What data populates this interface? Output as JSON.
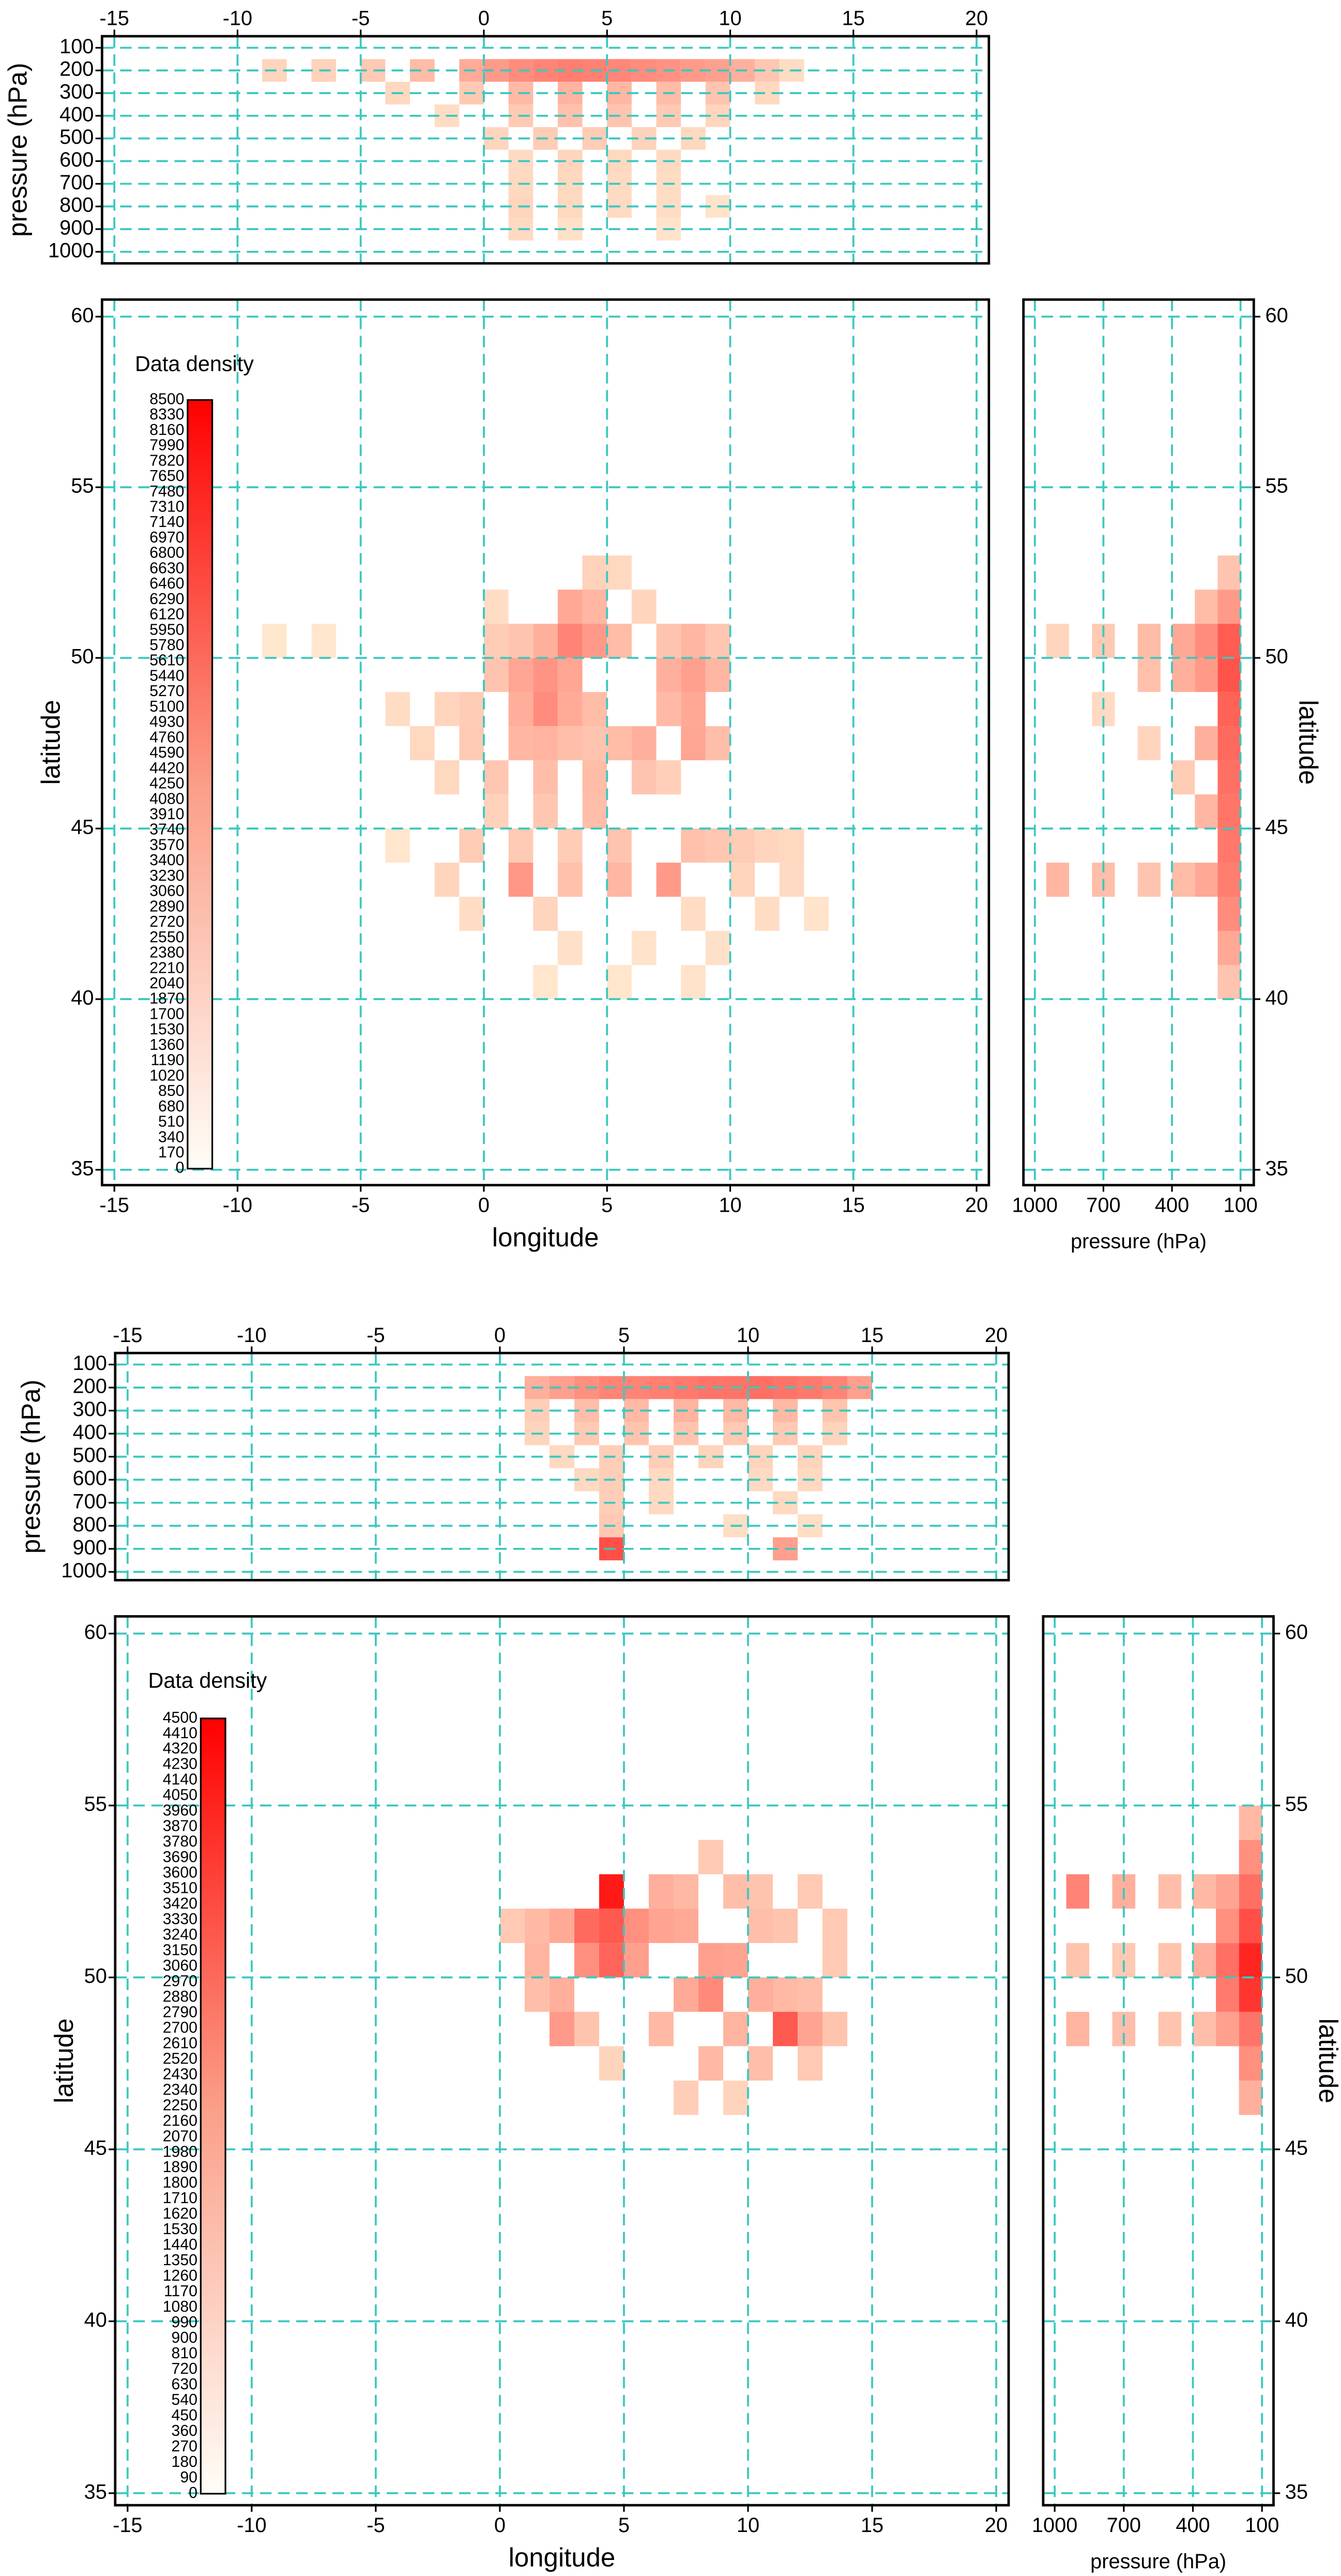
{
  "chart_data": [
    {
      "type": "heatmap",
      "y_label": "pressure (hPa)",
      "xlim": [
        -15.5,
        20.5
      ],
      "xticks": [
        -15,
        -10,
        -5,
        0,
        5,
        10,
        15,
        20
      ],
      "ylim": [
        1051,
        49
      ],
      "yticks": [
        100,
        200,
        300,
        400,
        500,
        600,
        700,
        800,
        900,
        1000
      ],
      "grid": true,
      "cells": {
        "x": [
          -8.5,
          -6.5,
          -4.5,
          -2.5,
          -0.5,
          0.5,
          1.5,
          2.5,
          3.5,
          4.5,
          5.5,
          6.5,
          7.5,
          8.5,
          9.5,
          10.5,
          11.5,
          12.5,
          -3.5,
          -0.5,
          1.5,
          3.5,
          5.5,
          7.5,
          9.5,
          11.5,
          -1.5,
          1.5,
          3.5,
          5.5,
          7.5,
          9.5,
          0.5,
          2.5,
          4.5,
          6.5,
          8.5,
          1.5,
          3.5,
          5.5,
          7.5,
          1.5,
          3.5,
          5.5,
          7.5,
          1.5,
          3.5,
          5.5,
          7.5,
          9.5,
          1.5,
          3.5,
          7.5
        ],
        "y": [
          200,
          200,
          200,
          200,
          200,
          200,
          200,
          200,
          200,
          200,
          200,
          200,
          200,
          200,
          200,
          200,
          200,
          200,
          300,
          300,
          300,
          300,
          300,
          300,
          300,
          300,
          400,
          400,
          400,
          400,
          400,
          400,
          500,
          500,
          500,
          500,
          500,
          600,
          600,
          600,
          600,
          700,
          700,
          700,
          700,
          800,
          800,
          800,
          800,
          800,
          900,
          900,
          900
        ],
        "values": [
          900,
          1000,
          1300,
          1800,
          2400,
          3000,
          3500,
          3800,
          4000,
          3900,
          3700,
          3500,
          3300,
          3000,
          2800,
          2200,
          1400,
          600,
          800,
          1300,
          1900,
          2100,
          2000,
          1800,
          1500,
          800,
          600,
          1300,
          1600,
          1500,
          1300,
          900,
          900,
          1200,
          1200,
          1000,
          800,
          700,
          900,
          800,
          700,
          800,
          800,
          700,
          600,
          900,
          800,
          700,
          600,
          400,
          700,
          500,
          400
        ]
      }
    },
    {
      "type": "heatmap",
      "x_label": "longitude",
      "y_label": "latitude",
      "xlim": [
        -15.5,
        20.5
      ],
      "xticks": [
        -15,
        -10,
        -5,
        0,
        5,
        10,
        15,
        20
      ],
      "ylim": [
        34.55,
        60.5
      ],
      "yticks": [
        35,
        40,
        45,
        50,
        55,
        60
      ],
      "grid": true,
      "colorbar": {
        "title": "Data density",
        "ticks": [
          0,
          170,
          340,
          510,
          680,
          850,
          1020,
          1190,
          1360,
          1530,
          1700,
          1870,
          2040,
          2210,
          2380,
          2550,
          2720,
          2890,
          3060,
          3230,
          3400,
          3570,
          3740,
          3910,
          4080,
          4250,
          4420,
          4590,
          4760,
          4930,
          5100,
          5270,
          5440,
          5610,
          5780,
          5950,
          6120,
          6290,
          6460,
          6630,
          6800,
          6970,
          7140,
          7310,
          7480,
          7650,
          7820,
          7990,
          8160,
          8330,
          8500
        ]
      },
      "cells": {
        "x": [
          3.5,
          4.5,
          3.5,
          4.5,
          2.5,
          5.5,
          0.5,
          1.5,
          5.5,
          4.5,
          6.5,
          0.5,
          1.5,
          2.5,
          3.5,
          2.5,
          1.5,
          3.5,
          4.5,
          0.5,
          -0.5,
          -1.5,
          -3.5,
          -2.5,
          -0.5,
          1.5,
          2.5,
          3.5,
          4.5,
          5.5,
          6.5,
          7.5,
          8.5,
          9.5,
          8.5,
          7.5,
          8.5,
          9.5,
          7.5,
          8.5,
          9.5,
          7.5,
          6.5,
          -1.5,
          0.5,
          2.5,
          4.5,
          0.5,
          2.5,
          4.5,
          -0.5,
          1.5,
          3.5,
          5.5,
          1.5,
          3.5,
          5.5,
          7.5,
          -1.5,
          2.5,
          -0.5,
          3.5,
          -3.5,
          -6.5,
          -8.5,
          8.5,
          9.5,
          10.5,
          11.5,
          12.5,
          10.5,
          8.5,
          9.5,
          11.5,
          6.5,
          5.5,
          8.5,
          12.5,
          13.5,
          2.5
        ],
        "y": [
          51.5,
          51.5,
          50.5,
          50.5,
          50.5,
          50.5,
          50.5,
          50.5,
          52.5,
          52.5,
          51.5,
          51.5,
          49.5,
          49.5,
          49.5,
          48.5,
          48.5,
          48.5,
          48.5,
          49.5,
          48.5,
          48.5,
          48.5,
          47.5,
          47.5,
          47.5,
          47.5,
          47.5,
          47.5,
          47.5,
          47.5,
          49.5,
          49.5,
          49.5,
          48.5,
          48.5,
          50.5,
          50.5,
          50.5,
          47.5,
          47.5,
          46.5,
          46.5,
          46.5,
          46.5,
          46.5,
          46.5,
          45.5,
          45.5,
          45.5,
          44.5,
          44.5,
          44.5,
          44.5,
          43.5,
          43.5,
          43.5,
          43.5,
          43.5,
          42.5,
          42.5,
          41.5,
          44.5,
          50.5,
          50.5,
          44.5,
          44.5,
          44.5,
          44.5,
          43.5,
          43.5,
          42.5,
          41.5,
          42.5,
          41.5,
          40.5,
          40.5,
          44.5,
          42.5,
          40.5
        ],
        "values": [
          2500,
          2000,
          3800,
          3000,
          2200,
          1800,
          1200,
          1500,
          800,
          1000,
          900,
          600,
          2600,
          3200,
          2600,
          3500,
          2300,
          2400,
          1800,
          1500,
          1200,
          900,
          600,
          800,
          1300,
          2000,
          2100,
          1700,
          1500,
          1800,
          2200,
          2200,
          2800,
          2000,
          2500,
          1900,
          2000,
          1400,
          1500,
          2600,
          1700,
          1100,
          1500,
          800,
          1400,
          1700,
          1800,
          1000,
          1400,
          1700,
          1200,
          1300,
          1200,
          1500,
          3100,
          1600,
          2000,
          3000,
          900,
          900,
          600,
          500,
          300,
          300,
          250,
          1600,
          1400,
          1200,
          900,
          700,
          900,
          600,
          500,
          600,
          400,
          300,
          400,
          800,
          400,
          300
        ]
      }
    },
    {
      "type": "heatmap",
      "x_label": "pressure (hPa)",
      "y_label": "latitude",
      "xlim": [
        1050,
        42
      ],
      "xticks": [
        1000,
        700,
        400,
        100
      ],
      "ylim": [
        34.55,
        60.5
      ],
      "yticks": [
        35,
        40,
        45,
        50,
        55,
        60
      ],
      "grid": true,
      "cells": {
        "x": [
          150,
          150,
          150,
          150,
          150,
          150,
          150,
          150,
          150,
          150,
          150,
          150,
          150,
          250,
          250,
          250,
          250,
          250,
          250,
          350,
          350,
          350,
          350,
          500,
          500,
          500,
          500,
          700,
          700,
          700,
          900,
          900
        ],
        "y": [
          40.5,
          41.5,
          42.5,
          43.5,
          44.5,
          45.5,
          46.5,
          47.5,
          48.5,
          49.5,
          50.5,
          51.5,
          52.5,
          43.5,
          45.5,
          47.5,
          49.5,
          50.5,
          51.5,
          43.5,
          46.5,
          49.5,
          50.5,
          43.5,
          47.5,
          49.5,
          50.5,
          43.5,
          48.5,
          50.5,
          43.5,
          50.5
        ],
        "values": [
          1500,
          2500,
          3500,
          4000,
          4200,
          4300,
          4500,
          4700,
          5000,
          5500,
          5200,
          3000,
          1500,
          2500,
          2000,
          2200,
          3000,
          3500,
          1800,
          1800,
          1200,
          2200,
          2500,
          1500,
          900,
          1600,
          1800,
          1700,
          700,
          1300,
          2000,
          900
        ]
      }
    },
    {
      "type": "heatmap",
      "y_label": "pressure (hPa)",
      "xlim": [
        -15.5,
        20.5
      ],
      "xticks": [
        -15,
        -10,
        -5,
        0,
        5,
        10,
        15,
        20
      ],
      "ylim": [
        1036,
        50
      ],
      "yticks": [
        100,
        200,
        300,
        400,
        500,
        600,
        700,
        800,
        900,
        1000
      ],
      "grid": true,
      "cells": {
        "x": [
          1.5,
          2.5,
          3.5,
          4.5,
          5.5,
          6.5,
          7.5,
          8.5,
          9.5,
          10.5,
          11.5,
          12.5,
          13.5,
          14.5,
          1.5,
          3.5,
          5.5,
          7.5,
          9.5,
          11.5,
          13.5,
          1.5,
          3.5,
          5.5,
          7.5,
          9.5,
          11.5,
          13.5,
          2.5,
          4.5,
          6.5,
          8.5,
          10.5,
          12.5,
          3.5,
          4.5,
          6.5,
          10.5,
          12.5,
          4.5,
          6.5,
          11.5,
          4.5,
          9.5,
          12.5,
          4.5,
          11.5
        ],
        "y": [
          200,
          200,
          200,
          200,
          200,
          200,
          200,
          200,
          200,
          200,
          200,
          200,
          200,
          200,
          300,
          300,
          300,
          300,
          300,
          300,
          300,
          400,
          400,
          400,
          400,
          400,
          400,
          400,
          500,
          500,
          500,
          500,
          500,
          500,
          600,
          600,
          600,
          600,
          600,
          700,
          700,
          700,
          800,
          800,
          800,
          900,
          900
        ],
        "values": [
          1200,
          1500,
          1800,
          2000,
          2000,
          2100,
          2200,
          2300,
          2300,
          2400,
          2300,
          2200,
          2000,
          1500,
          600,
          900,
          1000,
          1100,
          1000,
          1000,
          800,
          500,
          700,
          800,
          800,
          700,
          700,
          500,
          400,
          600,
          600,
          500,
          500,
          500,
          400,
          600,
          400,
          400,
          400,
          600,
          400,
          400,
          700,
          300,
          300,
          3000,
          1500
        ]
      }
    },
    {
      "type": "heatmap",
      "x_label": "longitude",
      "y_label": "latitude",
      "xlim": [
        -15.5,
        20.5
      ],
      "xticks": [
        -15,
        -10,
        -5,
        0,
        5,
        10,
        15,
        20
      ],
      "ylim": [
        34.65,
        60.5
      ],
      "yticks": [
        35,
        40,
        45,
        50,
        55,
        60
      ],
      "grid": true,
      "colorbar": {
        "title": "Data density",
        "ticks": [
          0,
          90,
          180,
          270,
          360,
          450,
          540,
          630,
          720,
          810,
          900,
          990,
          1080,
          1170,
          1260,
          1350,
          1440,
          1530,
          1620,
          1710,
          1800,
          1890,
          1980,
          2070,
          2160,
          2250,
          2340,
          2430,
          2520,
          2610,
          2700,
          2790,
          2880,
          2970,
          3060,
          3150,
          3240,
          3330,
          3420,
          3510,
          3600,
          3690,
          3780,
          3870,
          3960,
          4050,
          4140,
          4230,
          4320,
          4410,
          4500
        ]
      },
      "cells": {
        "x": [
          4.5,
          3.5,
          4.5,
          5.5,
          4.5,
          3.5,
          5.5,
          2.5,
          1.5,
          0.5,
          6.5,
          7.5,
          8.5,
          9.5,
          10.5,
          12.5,
          6.5,
          7.5,
          8.5,
          9.5,
          8.5,
          7.5,
          10.5,
          11.5,
          12.5,
          13.5,
          2.5,
          1.5,
          3.5,
          2.5,
          6.5,
          9.5,
          11.5,
          12.5,
          13.5,
          10.5,
          8.5,
          12.5,
          7.5,
          9.5,
          4.5,
          1.5,
          10.5,
          11.5,
          13.5
        ],
        "y": [
          52.5,
          51.5,
          51.5,
          51.5,
          50.5,
          50.5,
          50.5,
          51.5,
          51.5,
          51.5,
          52.5,
          52.5,
          53.5,
          52.5,
          52.5,
          52.5,
          51.5,
          51.5,
          50.5,
          50.5,
          49.5,
          49.5,
          49.5,
          49.5,
          49.5,
          50.5,
          49.5,
          49.5,
          48.5,
          48.5,
          48.5,
          48.5,
          48.5,
          48.5,
          48.5,
          47.5,
          47.5,
          47.5,
          46.5,
          46.5,
          47.5,
          50.5,
          51.5,
          51.5,
          51.5
        ],
        "values": [
          4000,
          2500,
          2800,
          1800,
          2600,
          1800,
          1500,
          1300,
          1000,
          700,
          1200,
          1000,
          700,
          900,
          800,
          700,
          1400,
          1300,
          1500,
          1400,
          1900,
          1300,
          1200,
          1000,
          900,
          700,
          1200,
          900,
          800,
          1600,
          1000,
          1100,
          2800,
          1400,
          800,
          900,
          1000,
          700,
          600,
          500,
          500,
          1100,
          900,
          800,
          700
        ]
      }
    },
    {
      "type": "heatmap",
      "x_label": "pressure (hPa)",
      "y_label": "latitude",
      "xlim": [
        1050,
        50
      ],
      "xticks": [
        1000,
        700,
        400,
        100
      ],
      "ylim": [
        34.65,
        60.5
      ],
      "yticks": [
        35,
        40,
        45,
        50,
        55,
        60
      ],
      "grid": true,
      "cells": {
        "x": [
          150,
          150,
          150,
          150,
          150,
          150,
          150,
          150,
          150,
          250,
          250,
          250,
          250,
          250,
          350,
          350,
          350,
          500,
          500,
          500,
          700,
          700,
          700,
          900,
          900,
          900
        ],
        "y": [
          46.5,
          47.5,
          48.5,
          49.5,
          50.5,
          51.5,
          52.5,
          53.5,
          54.5,
          48.5,
          49.5,
          50.5,
          51.5,
          52.5,
          48.5,
          50.5,
          52.5,
          48.5,
          50.5,
          52.5,
          48.5,
          50.5,
          52.5,
          48.5,
          50.5,
          52.5
        ],
        "values": [
          1200,
          1800,
          2300,
          3500,
          3800,
          3000,
          2400,
          1800,
          1000,
          1500,
          2200,
          2400,
          1800,
          1400,
          900,
          1200,
          1000,
          800,
          800,
          900,
          900,
          700,
          1200,
          1100,
          800,
          2000
        ]
      }
    }
  ]
}
